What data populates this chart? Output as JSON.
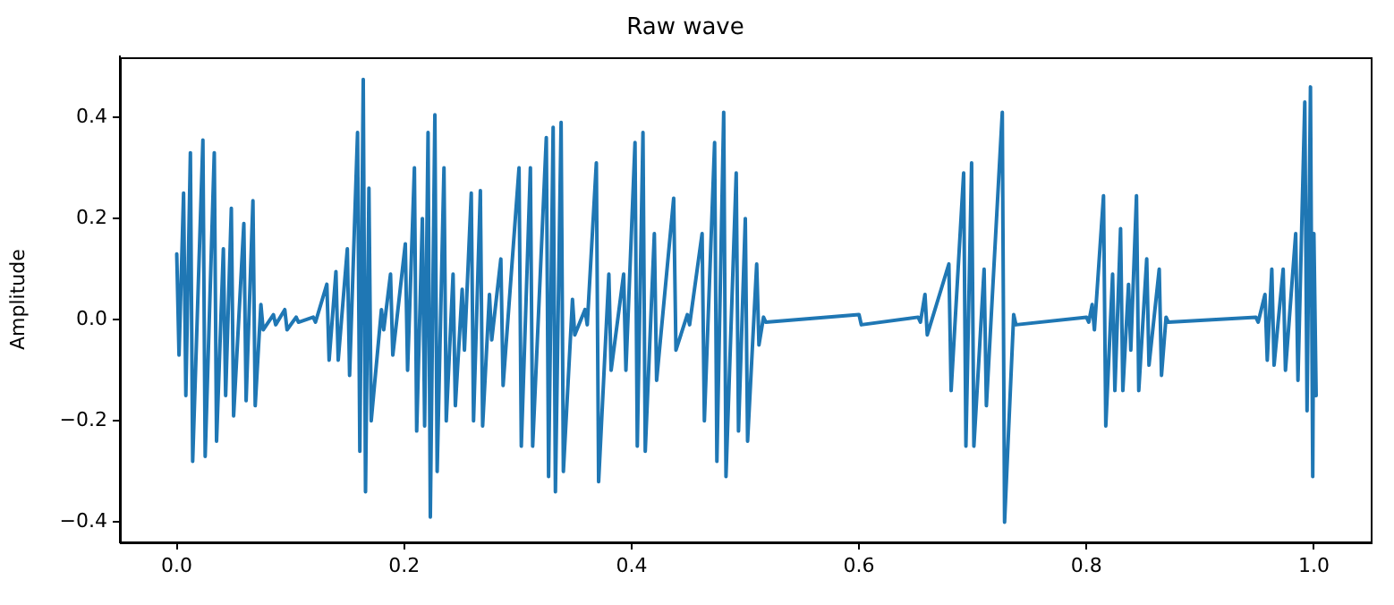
{
  "chart_data": {
    "type": "line",
    "title": "Raw wave",
    "ylabel": "Amplitude",
    "xlim": [
      -0.05,
      1.05
    ],
    "ylim": [
      -0.44,
      0.52
    ],
    "xticks": [
      {
        "value": 0,
        "label": "0.0"
      },
      {
        "value": 0.2,
        "label": "0.2"
      },
      {
        "value": 0.4,
        "label": "0.4"
      },
      {
        "value": 0.6,
        "label": "0.6"
      },
      {
        "value": 0.8,
        "label": "0.8"
      },
      {
        "value": 1,
        "label": "1.0"
      }
    ],
    "yticks": [
      {
        "value": -0.4,
        "label": "−0.4"
      },
      {
        "value": -0.2,
        "label": "−0.2"
      },
      {
        "value": 0,
        "label": "0.0"
      },
      {
        "value": 0.2,
        "label": "0.2"
      },
      {
        "value": 0.4,
        "label": "0.4"
      }
    ],
    "grid": false,
    "legend": false,
    "marker": "none",
    "line_style": "solid",
    "series": [
      {
        "color": "#1f77b4",
        "x": [
          0.0,
          0.002,
          0.006,
          0.008,
          0.012,
          0.014,
          0.023,
          0.025,
          0.033,
          0.035,
          0.041,
          0.043,
          0.048,
          0.05,
          0.059,
          0.061,
          0.067,
          0.069,
          0.074,
          0.076,
          0.085,
          0.087,
          0.095,
          0.097,
          0.105,
          0.107,
          0.12,
          0.122,
          0.132,
          0.134,
          0.14,
          0.142,
          0.15,
          0.152,
          0.159,
          0.161,
          0.164,
          0.166,
          0.169,
          0.171,
          0.18,
          0.182,
          0.188,
          0.19,
          0.201,
          0.203,
          0.209,
          0.211,
          0.216,
          0.218,
          0.221,
          0.223,
          0.227,
          0.229,
          0.235,
          0.237,
          0.243,
          0.245,
          0.251,
          0.253,
          0.259,
          0.261,
          0.267,
          0.269,
          0.275,
          0.277,
          0.285,
          0.287,
          0.301,
          0.303,
          0.311,
          0.313,
          0.325,
          0.327,
          0.331,
          0.333,
          0.338,
          0.34,
          0.348,
          0.35,
          0.359,
          0.361,
          0.369,
          0.371,
          0.38,
          0.382,
          0.393,
          0.395,
          0.403,
          0.405,
          0.41,
          0.412,
          0.42,
          0.422,
          0.437,
          0.439,
          0.449,
          0.451,
          0.462,
          0.464,
          0.473,
          0.475,
          0.481,
          0.483,
          0.492,
          0.494,
          0.5,
          0.502,
          0.51,
          0.512,
          0.516,
          0.518,
          0.6,
          0.602,
          0.652,
          0.654,
          0.658,
          0.66,
          0.679,
          0.681,
          0.692,
          0.694,
          0.699,
          0.701,
          0.71,
          0.712,
          0.726,
          0.728,
          0.736,
          0.738,
          0.8,
          0.802,
          0.805,
          0.807,
          0.815,
          0.817,
          0.823,
          0.825,
          0.83,
          0.832,
          0.837,
          0.839,
          0.844,
          0.846,
          0.853,
          0.855,
          0.864,
          0.866,
          0.87,
          0.872,
          0.949,
          0.951,
          0.957,
          0.959,
          0.963,
          0.965,
          0.973,
          0.975,
          0.984,
          0.986,
          0.992,
          0.994,
          0.997,
          0.999,
          1.0,
          1.002
        ],
        "values": [
          0.13,
          -0.07,
          0.25,
          -0.15,
          0.33,
          -0.28,
          0.355,
          -0.27,
          0.33,
          -0.24,
          0.14,
          -0.15,
          0.22,
          -0.19,
          0.19,
          -0.16,
          0.235,
          -0.17,
          0.03,
          -0.02,
          0.01,
          -0.01,
          0.02,
          -0.02,
          0.005,
          -0.005,
          0.005,
          -0.005,
          0.07,
          -0.08,
          0.095,
          -0.08,
          0.14,
          -0.11,
          0.37,
          -0.26,
          0.475,
          -0.34,
          0.26,
          -0.2,
          0.02,
          -0.02,
          0.09,
          -0.07,
          0.15,
          -0.1,
          0.3,
          -0.22,
          0.2,
          -0.21,
          0.37,
          -0.39,
          0.405,
          -0.3,
          0.3,
          -0.2,
          0.09,
          -0.17,
          0.06,
          -0.06,
          0.25,
          -0.2,
          0.255,
          -0.21,
          0.05,
          -0.04,
          0.12,
          -0.13,
          0.3,
          -0.25,
          0.3,
          -0.25,
          0.36,
          -0.31,
          0.38,
          -0.34,
          0.39,
          -0.3,
          0.04,
          -0.03,
          0.02,
          -0.01,
          0.31,
          -0.32,
          0.09,
          -0.1,
          0.09,
          -0.1,
          0.35,
          -0.25,
          0.37,
          -0.26,
          0.17,
          -0.12,
          0.24,
          -0.06,
          0.01,
          -0.01,
          0.17,
          -0.2,
          0.35,
          -0.28,
          0.41,
          -0.31,
          0.29,
          -0.22,
          0.2,
          -0.24,
          0.11,
          -0.05,
          0.005,
          -0.005,
          0.01,
          -0.01,
          0.005,
          -0.005,
          0.05,
          -0.03,
          0.11,
          -0.14,
          0.29,
          -0.25,
          0.31,
          -0.25,
          0.1,
          -0.17,
          0.41,
          -0.4,
          0.01,
          -0.01,
          0.005,
          -0.005,
          0.03,
          -0.02,
          0.245,
          -0.21,
          0.09,
          -0.14,
          0.18,
          -0.14,
          0.07,
          -0.06,
          0.245,
          -0.14,
          0.12,
          -0.09,
          0.1,
          -0.11,
          0.005,
          -0.005,
          0.005,
          -0.005,
          0.05,
          -0.08,
          0.1,
          -0.09,
          0.1,
          -0.1,
          0.17,
          -0.12,
          0.43,
          -0.18,
          0.46,
          -0.31,
          0.17,
          -0.15
        ]
      }
    ]
  }
}
